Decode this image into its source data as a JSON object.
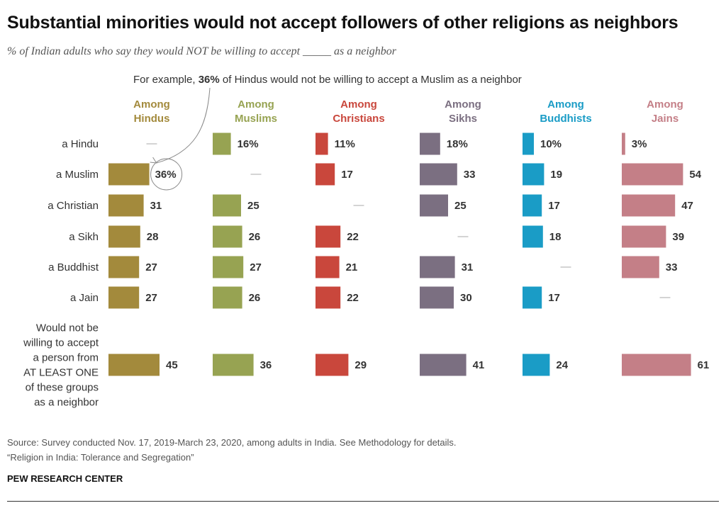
{
  "title": "Substantial minorities would not accept followers of other religions as neighbors",
  "subtitle": "% of Indian adults who say they would NOT be willing to accept _____ as a neighbor",
  "annotation": {
    "prefix": "For example, ",
    "bold": "36%",
    "suffix": " of Hindus would not be willing to accept a Muslim as a neighbor"
  },
  "footer": {
    "source": "Source: Survey conducted Nov. 17, 2019-March 23, 2020, among adults in India. See Methodology for details.",
    "report": "“Religion in India: Tolerance and Segregation”",
    "brand": "PEW RESEARCH CENTER"
  },
  "chart_data": {
    "type": "bar",
    "categories": [
      "a Hindu",
      "a Muslim",
      "a Christian",
      "a Sikh",
      "a Buddhist",
      "a Jain",
      "Would not be willing to accept a person from AT LEAST ONE of these groups as a neighbor"
    ],
    "category_lines": [
      [
        "a Hindu"
      ],
      [
        "a Muslim"
      ],
      [
        "a Christian"
      ],
      [
        "a Sikh"
      ],
      [
        "a Buddhist"
      ],
      [
        "a Jain"
      ],
      [
        "Would not be",
        "willing to accept",
        "a person from",
        "AT LEAST ONE",
        "of these groups",
        "as a neighbor"
      ]
    ],
    "missing_label": "—",
    "series": [
      {
        "name": "Among Hindus",
        "head": [
          "Among",
          "Hindus"
        ],
        "color": "#a38a3c",
        "values": [
          null,
          36,
          31,
          28,
          27,
          27,
          45
        ],
        "labels": [
          "—",
          "36%",
          "31",
          "28",
          "27",
          "27",
          "45"
        ]
      },
      {
        "name": "Among Muslims",
        "head": [
          "Among",
          "Muslims"
        ],
        "color": "#97a352",
        "values": [
          16,
          null,
          25,
          26,
          27,
          26,
          36
        ],
        "labels": [
          "16%",
          "—",
          "25",
          "26",
          "27",
          "26",
          "36"
        ]
      },
      {
        "name": "Among Christians",
        "head": [
          "Among",
          "Christians"
        ],
        "color": "#c9473c",
        "values": [
          11,
          17,
          null,
          22,
          21,
          22,
          29
        ],
        "labels": [
          "11%",
          "17",
          "—",
          "22",
          "21",
          "22",
          "29"
        ]
      },
      {
        "name": "Among Sikhs",
        "head": [
          "Among",
          "Sikhs"
        ],
        "color": "#7b6f81",
        "values": [
          18,
          33,
          25,
          null,
          31,
          30,
          41
        ],
        "labels": [
          "18%",
          "33",
          "25",
          "—",
          "31",
          "30",
          "41"
        ]
      },
      {
        "name": "Among Buddhists",
        "head": [
          "Among",
          "Buddhists"
        ],
        "color": "#1a9cc6",
        "values": [
          10,
          19,
          17,
          18,
          null,
          17,
          24
        ],
        "labels": [
          "10%",
          "19",
          "17",
          "18",
          "—",
          "17",
          "24"
        ]
      },
      {
        "name": "Among Jains",
        "head": [
          "Among",
          "Jains"
        ],
        "color": "#c47f87",
        "values": [
          3,
          54,
          47,
          39,
          33,
          null,
          61
        ],
        "labels": [
          "3%",
          "54",
          "47",
          "39",
          "33",
          "—",
          "61"
        ]
      }
    ],
    "highlight": {
      "series": 0,
      "category": 1
    }
  }
}
